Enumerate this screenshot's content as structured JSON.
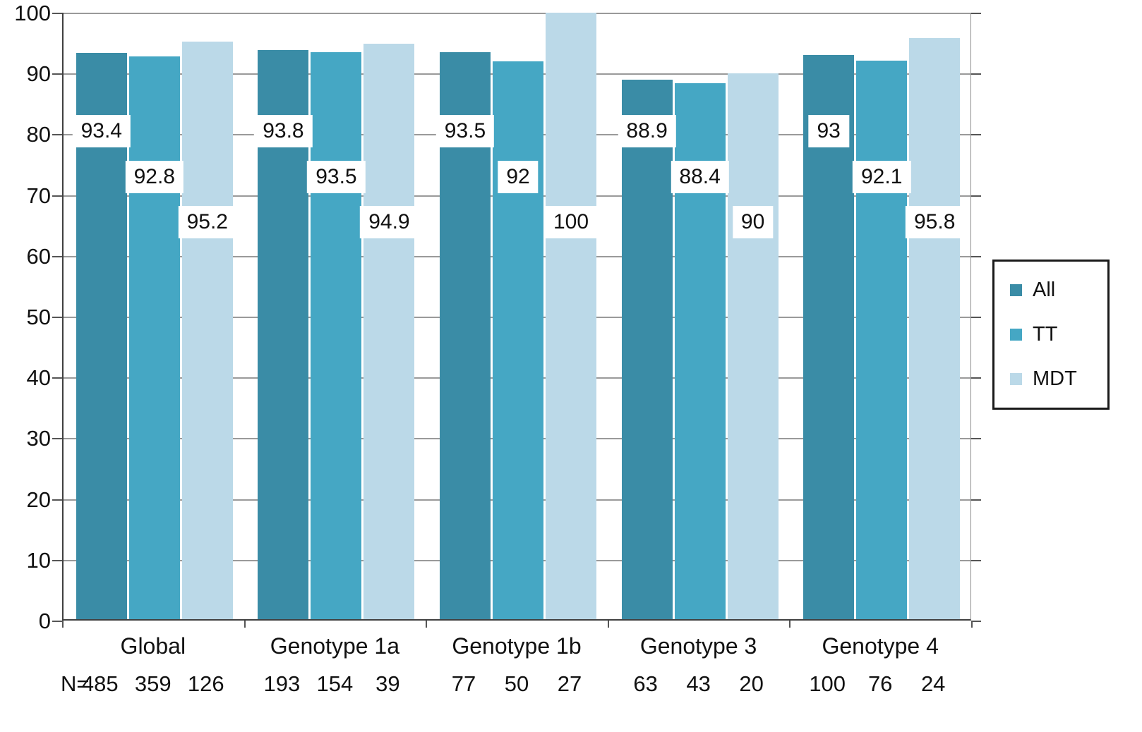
{
  "chart_data": {
    "type": "bar",
    "title": "",
    "categories": [
      "Global",
      "Genotype 1a",
      "Genotype 1b",
      "Genotype 3",
      "Genotype 4"
    ],
    "series": [
      {
        "name": "All",
        "color": "#3A8CA6",
        "values": [
          93.4,
          93.8,
          93.5,
          88.9,
          93
        ]
      },
      {
        "name": "TT",
        "color": "#45A7C4",
        "values": [
          92.8,
          93.5,
          92,
          88.4,
          92.1
        ]
      },
      {
        "name": "MDT",
        "color": "#BBD9E8",
        "values": [
          95.2,
          94.9,
          100,
          90,
          95.8
        ]
      }
    ],
    "data_labels": [
      [
        "93.4",
        "92.8",
        "95.2"
      ],
      [
        "93.8",
        "93.5",
        "94.9"
      ],
      [
        "93.5",
        "92",
        "100"
      ],
      [
        "88.9",
        "88.4",
        "90"
      ],
      [
        "93",
        "92.1",
        "95.8"
      ]
    ],
    "n_label": "N=",
    "n_values": [
      [
        "485",
        "359",
        "126"
      ],
      [
        "193",
        "154",
        "39"
      ],
      [
        "77",
        "50",
        "27"
      ],
      [
        "63",
        "43",
        "20"
      ],
      [
        "100",
        "76",
        "24"
      ]
    ],
    "ylim": [
      0,
      100
    ],
    "ytick_step": 10,
    "yticks": [
      "0",
      "10",
      "20",
      "30",
      "40",
      "50",
      "60",
      "70",
      "80",
      "90",
      "100"
    ],
    "grid": true,
    "legend_position": "right",
    "legend_labels": [
      "All",
      "TT",
      "MDT"
    ]
  }
}
